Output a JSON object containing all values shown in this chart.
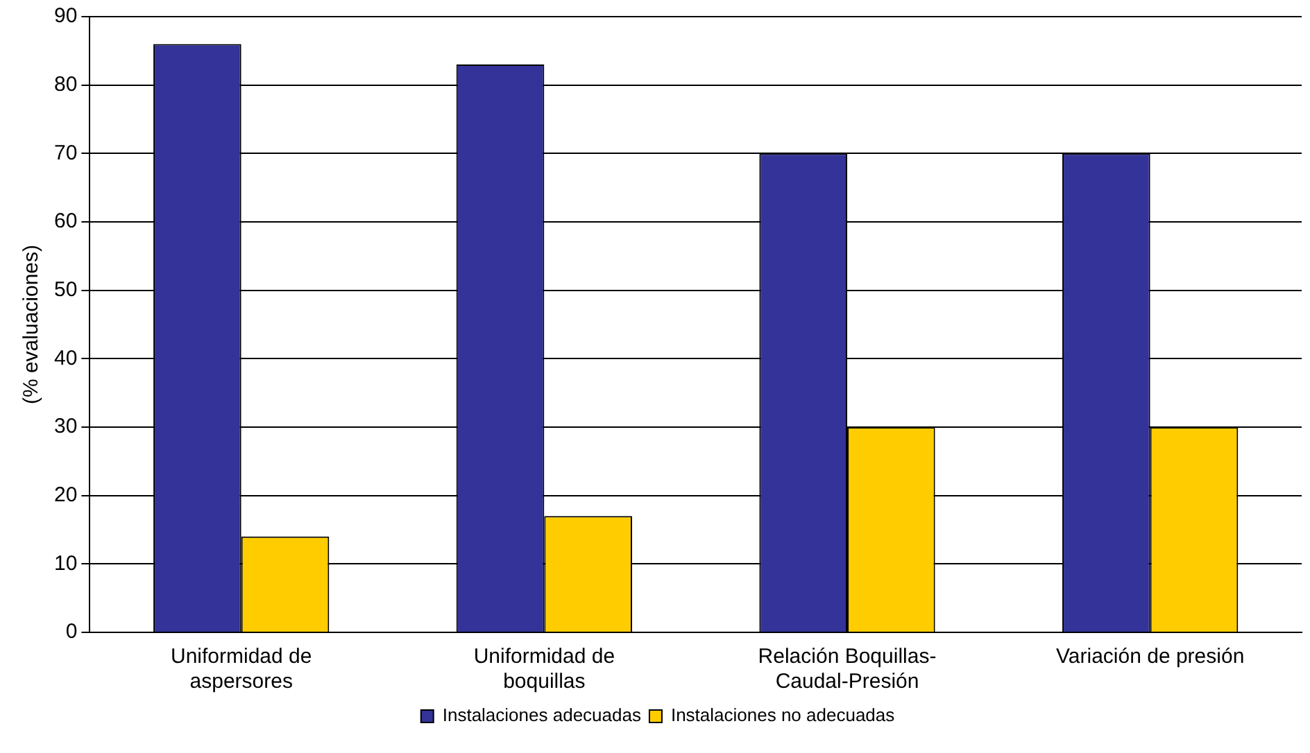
{
  "chart_data": {
    "type": "bar",
    "ylabel": "(% evaluaciones)",
    "categories": [
      "Uniformidad de aspersores",
      "Uniformidad de boquillas",
      "Relación Boquillas-Caudal-Presión",
      "Variación de presión"
    ],
    "series": [
      {
        "name": "Instalaciones adecuadas",
        "color": "#333399",
        "values": [
          86,
          83,
          70,
          70
        ]
      },
      {
        "name": "Instalaciones no adecuadas",
        "color": "#ffcc00",
        "values": [
          14,
          17,
          30,
          30
        ]
      }
    ],
    "ylim": [
      0,
      90
    ],
    "yticks": [
      0,
      10,
      20,
      30,
      40,
      50,
      60,
      70,
      80,
      90
    ],
    "grid": "y",
    "legend": "bottom"
  }
}
